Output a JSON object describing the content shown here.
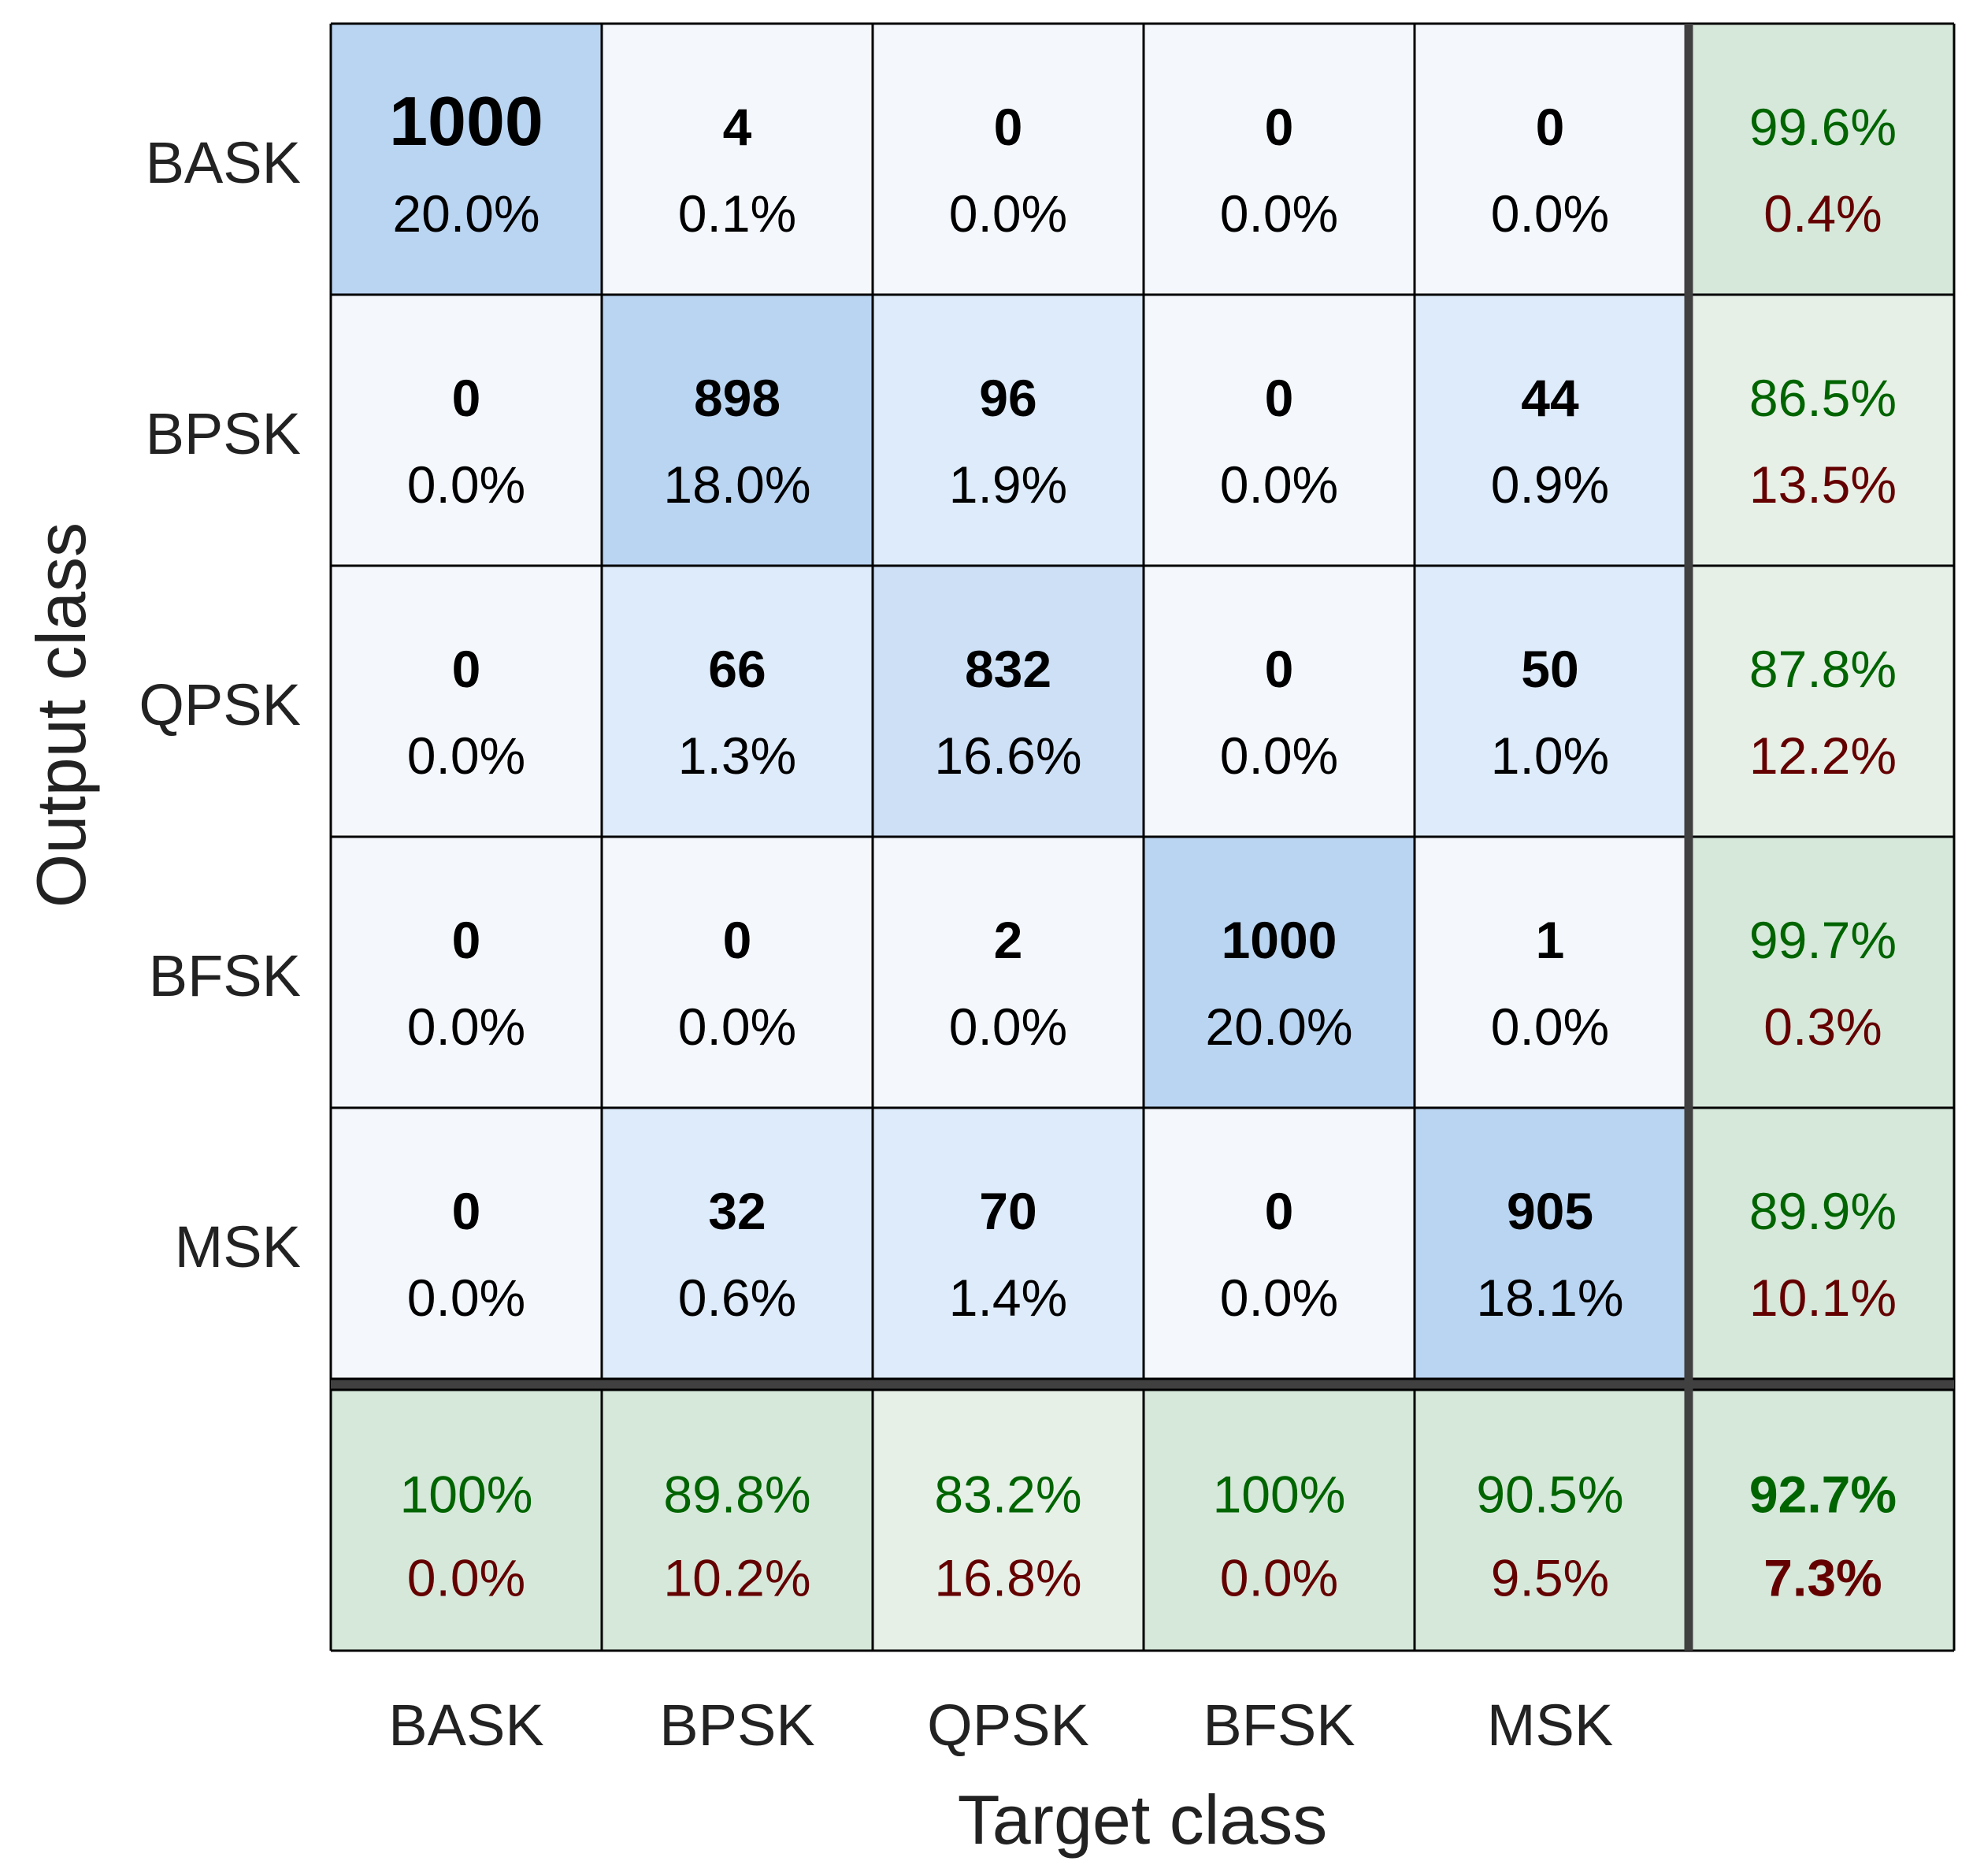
{
  "chart_data": {
    "type": "heatmap",
    "title": "",
    "xlabel": "Target class",
    "ylabel": "Output class",
    "categories": [
      "BASK",
      "BPSK",
      "QPSK",
      "BFSK",
      "MSK"
    ],
    "counts": [
      [
        1000,
        4,
        0,
        0,
        0
      ],
      [
        0,
        898,
        96,
        0,
        44
      ],
      [
        0,
        66,
        832,
        0,
        50
      ],
      [
        0,
        0,
        2,
        1000,
        1
      ],
      [
        0,
        32,
        70,
        0,
        905
      ]
    ],
    "percents": [
      [
        "20.0%",
        "0.1%",
        "0.0%",
        "0.0%",
        "0.0%"
      ],
      [
        "0.0%",
        "18.0%",
        "1.9%",
        "0.0%",
        "0.9%"
      ],
      [
        "0.0%",
        "1.3%",
        "16.6%",
        "0.0%",
        "1.0%"
      ],
      [
        "0.0%",
        "0.0%",
        "0.0%",
        "20.0%",
        "0.0%"
      ],
      [
        "0.0%",
        "0.6%",
        "1.4%",
        "0.0%",
        "18.1%"
      ]
    ],
    "row_summary": [
      {
        "correct": "99.6%",
        "error": "0.4%"
      },
      {
        "correct": "86.5%",
        "error": "13.5%"
      },
      {
        "correct": "87.8%",
        "error": "12.2%"
      },
      {
        "correct": "99.7%",
        "error": "0.3%"
      },
      {
        "correct": "89.9%",
        "error": "10.1%"
      }
    ],
    "col_summary": [
      {
        "correct": "100%",
        "error": "0.0%"
      },
      {
        "correct": "89.8%",
        "error": "10.2%"
      },
      {
        "correct": "83.2%",
        "error": "16.8%"
      },
      {
        "correct": "100%",
        "error": "0.0%"
      },
      {
        "correct": "90.5%",
        "error": "9.5%"
      }
    ],
    "overall": {
      "correct": "92.7%",
      "error": "7.3%"
    },
    "colors": {
      "cell_strong": "#bad5f2",
      "cell_mid": "#cde0f6",
      "cell_light": "#deebfa",
      "cell_faint": "#f4f8fd",
      "summary_strong": "#d6e8da",
      "summary_light": "#e6f0e7",
      "correct_text": "#006400",
      "error_text": "#640000",
      "grid": "#000000",
      "separator": "#404040",
      "text": "#000000",
      "label": "#222222"
    }
  }
}
